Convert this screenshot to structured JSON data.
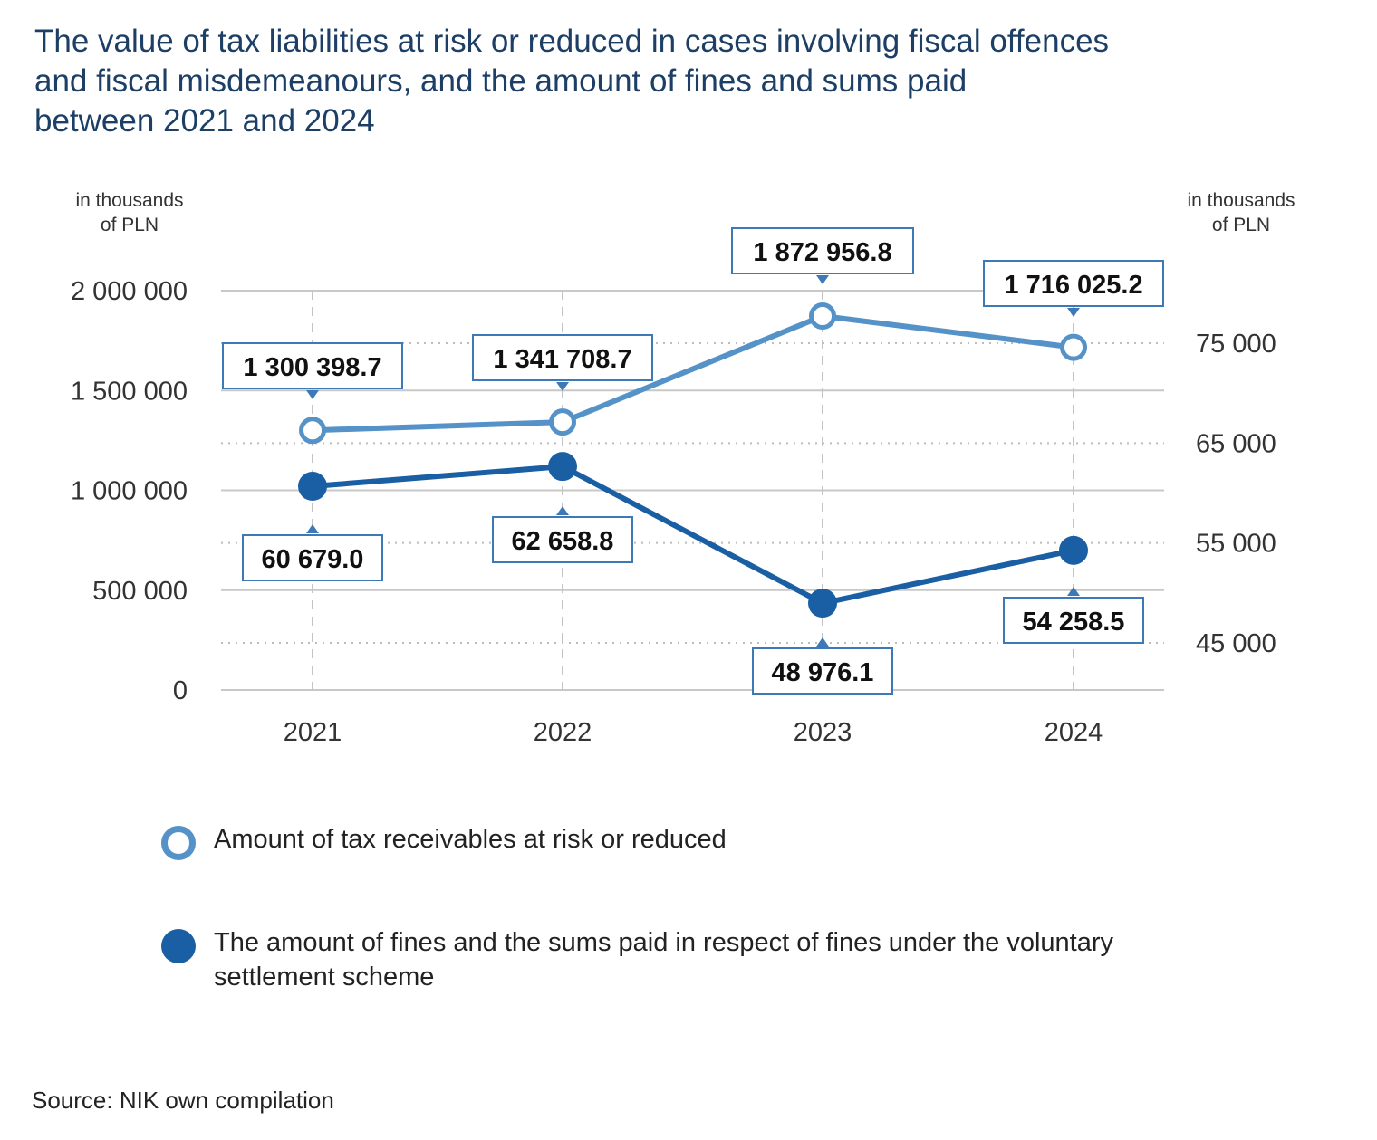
{
  "title_lines": [
    "The value of tax liabilities at risk or reduced in cases involving fiscal offences",
    "and fiscal misdemeanours, and the amount of fines and sums paid",
    "between 2021 and 2024"
  ],
  "source": "Source: NIK own compilation",
  "colors": {
    "title": "#1d3f66",
    "series_receivables": "#5592c8",
    "series_fines": "#1a5fa4",
    "label_border": "#3d79b6"
  },
  "chart_data": {
    "type": "line",
    "categories": [
      "2021",
      "2022",
      "2023",
      "2024"
    ],
    "left_axis": {
      "unit_lines": [
        "in thousands",
        "of PLN"
      ],
      "ticks": [
        0,
        500000,
        1000000,
        1500000,
        2000000
      ],
      "tick_labels": [
        "0",
        "500 000",
        "1 000 000",
        "1 500 000",
        "2 000 000"
      ],
      "range": [
        0,
        2000000
      ]
    },
    "right_axis": {
      "unit_lines": [
        "in thousands",
        "of PLN"
      ],
      "ticks": [
        45000,
        55000,
        65000,
        75000
      ],
      "tick_labels": [
        "45 000",
        "55 000",
        "65 000",
        "75 000"
      ],
      "range": [
        36000,
        81000
      ]
    },
    "series": [
      {
        "name": "Amount of tax receivables at risk or reduced",
        "axis": "left",
        "marker": "hollow-circle",
        "values": [
          1300398.7,
          1341708.7,
          1872956.8,
          1716025.2
        ],
        "labels": [
          "1 300 398.7",
          "1 341 708.7",
          "1 872 956.8",
          "1 716 025.2"
        ]
      },
      {
        "name": "The amount of fines and the sums paid in respect of fines under the voluntary settlement scheme",
        "axis": "right",
        "marker": "filled-circle",
        "values": [
          60679.0,
          62658.8,
          48976.1,
          54258.5
        ],
        "labels": [
          "60 679.0",
          "62 658.8",
          "48 976.1",
          "54 258.5"
        ]
      }
    ],
    "grid": true,
    "legend_position": "bottom"
  }
}
